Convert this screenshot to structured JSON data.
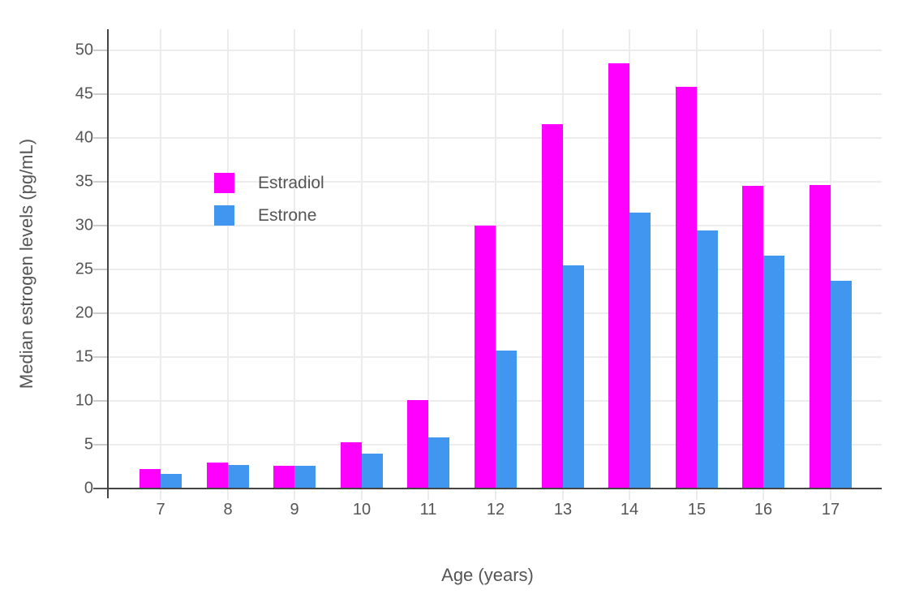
{
  "chart_data": {
    "type": "bar",
    "title": "",
    "xlabel": "Age (years)",
    "ylabel": "Median estrogen levels (pg/mL)",
    "categories": [
      "7",
      "8",
      "9",
      "10",
      "11",
      "12",
      "13",
      "14",
      "15",
      "16",
      "17"
    ],
    "series": [
      {
        "name": "Estradiol",
        "color": "#FF00FF",
        "values": [
          2.2,
          3.0,
          2.6,
          5.3,
          10.1,
          30.0,
          41.6,
          48.5,
          45.8,
          34.5,
          34.6
        ]
      },
      {
        "name": "Estrone",
        "color": "#4196F0",
        "values": [
          1.7,
          2.7,
          2.6,
          4.0,
          5.8,
          15.7,
          25.5,
          31.5,
          29.4,
          26.6,
          23.7
        ]
      }
    ],
    "y_ticks": [
      0,
      5,
      10,
      15,
      20,
      25,
      30,
      35,
      40,
      45,
      50
    ],
    "ylim": [
      0,
      52.5
    ],
    "grid": true,
    "legend_position": "upper-left-inside"
  },
  "colors": {
    "background": "#FFFFFF",
    "axis_line": "#444444",
    "gridline": "#ECECEC",
    "tick_text": "#555555",
    "estradiol_bar": "#FF00FF",
    "estrone_bar": "#4196F0"
  }
}
